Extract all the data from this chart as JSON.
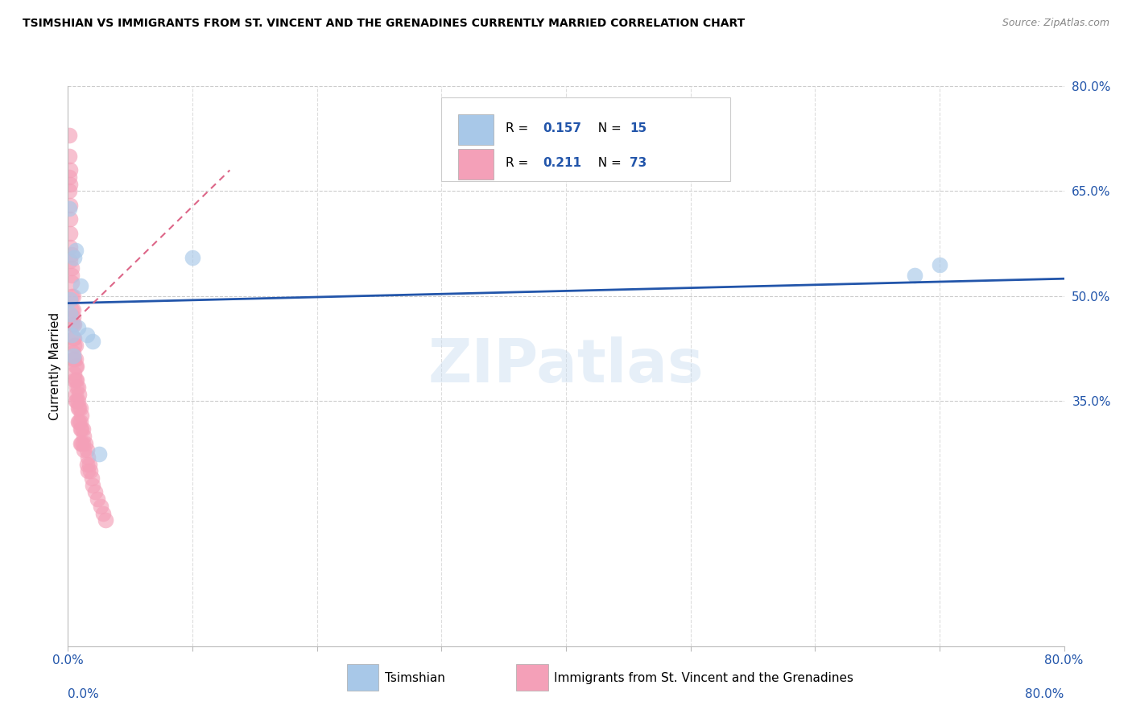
{
  "title": "TSIMSHIAN VS IMMIGRANTS FROM ST. VINCENT AND THE GRENADINES CURRENTLY MARRIED CORRELATION CHART",
  "source": "Source: ZipAtlas.com",
  "ylabel": "Currently Married",
  "xlim": [
    0.0,
    0.8
  ],
  "ylim": [
    0.0,
    0.8
  ],
  "xtick_pos": [
    0.0,
    0.1,
    0.2,
    0.3,
    0.4,
    0.5,
    0.6,
    0.7,
    0.8
  ],
  "xtick_labels": [
    "0.0%",
    "",
    "",
    "",
    "",
    "",
    "",
    "",
    "80.0%"
  ],
  "ytick_positions_right": [
    0.35,
    0.5,
    0.65,
    0.8
  ],
  "ytick_labels_right": [
    "35.0%",
    "50.0%",
    "65.0%",
    "80.0%"
  ],
  "color_blue": "#A8C8E8",
  "color_pink": "#F4A0B8",
  "trendline_blue_color": "#2255AA",
  "trendline_pink_color": "#DD6688",
  "watermark": "ZIPatlas",
  "tsimshian_x": [
    0.001,
    0.002,
    0.002,
    0.003,
    0.004,
    0.005,
    0.006,
    0.008,
    0.01,
    0.015,
    0.02,
    0.025,
    0.1,
    0.68,
    0.7
  ],
  "tsimshian_y": [
    0.625,
    0.495,
    0.475,
    0.445,
    0.415,
    0.555,
    0.565,
    0.455,
    0.515,
    0.445,
    0.435,
    0.275,
    0.555,
    0.53,
    0.545
  ],
  "svg_x": [
    0.001,
    0.001,
    0.001,
    0.001,
    0.002,
    0.002,
    0.002,
    0.002,
    0.002,
    0.002,
    0.002,
    0.003,
    0.003,
    0.003,
    0.003,
    0.003,
    0.003,
    0.003,
    0.004,
    0.004,
    0.004,
    0.004,
    0.004,
    0.004,
    0.004,
    0.005,
    0.005,
    0.005,
    0.005,
    0.005,
    0.005,
    0.006,
    0.006,
    0.006,
    0.006,
    0.006,
    0.006,
    0.007,
    0.007,
    0.007,
    0.007,
    0.008,
    0.008,
    0.008,
    0.008,
    0.009,
    0.009,
    0.009,
    0.01,
    0.01,
    0.01,
    0.01,
    0.011,
    0.011,
    0.011,
    0.012,
    0.012,
    0.013,
    0.013,
    0.014,
    0.015,
    0.015,
    0.016,
    0.016,
    0.017,
    0.018,
    0.019,
    0.02,
    0.022,
    0.024,
    0.026,
    0.028,
    0.03
  ],
  "svg_y": [
    0.73,
    0.7,
    0.67,
    0.65,
    0.68,
    0.66,
    0.63,
    0.61,
    0.59,
    0.57,
    0.55,
    0.56,
    0.54,
    0.53,
    0.52,
    0.5,
    0.48,
    0.46,
    0.5,
    0.48,
    0.47,
    0.46,
    0.44,
    0.42,
    0.41,
    0.46,
    0.44,
    0.43,
    0.41,
    0.39,
    0.38,
    0.43,
    0.41,
    0.4,
    0.38,
    0.36,
    0.35,
    0.4,
    0.38,
    0.37,
    0.35,
    0.37,
    0.35,
    0.34,
    0.32,
    0.36,
    0.34,
    0.32,
    0.34,
    0.32,
    0.31,
    0.29,
    0.33,
    0.31,
    0.29,
    0.31,
    0.29,
    0.3,
    0.28,
    0.29,
    0.28,
    0.26,
    0.27,
    0.25,
    0.26,
    0.25,
    0.24,
    0.23,
    0.22,
    0.21,
    0.2,
    0.19,
    0.18
  ],
  "blue_trendline_x": [
    0.0,
    0.8
  ],
  "blue_trendline_y": [
    0.49,
    0.525
  ],
  "pink_trendline_x": [
    0.0,
    0.13
  ],
  "pink_trendline_y": [
    0.455,
    0.68
  ]
}
